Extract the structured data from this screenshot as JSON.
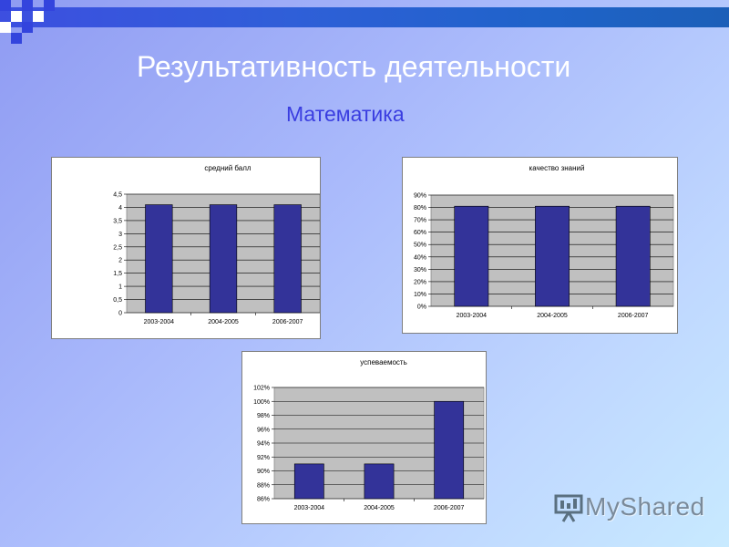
{
  "slide": {
    "title": "Результативность деятельности",
    "subtitle": "Математика"
  },
  "watermark": {
    "text": "MyShared",
    "icon": "presentation-screen-icon"
  },
  "colors": {
    "bar": "#333399",
    "plot_bg": "#c0c0c0",
    "title": "#ffffff",
    "subtitle": "#3a3de0"
  },
  "chart_data": [
    {
      "type": "bar",
      "title": "средний балл",
      "categories": [
        "2003-2004",
        "2004-2005",
        "2006-2007"
      ],
      "values": [
        4.1,
        4.1,
        4.1
      ],
      "ylim": [
        0,
        4.5
      ],
      "yticks": [
        "0",
        "0,5",
        "1",
        "1,5",
        "2",
        "2,5",
        "3",
        "3,5",
        "4",
        "4,5"
      ],
      "grid": true,
      "legend": "none",
      "xlabel": "",
      "ylabel": ""
    },
    {
      "type": "bar",
      "title": "качество знаний",
      "categories": [
        "2003-2004",
        "2004-2005",
        "2006-2007"
      ],
      "values": [
        81,
        81,
        81
      ],
      "ylim": [
        0,
        90
      ],
      "yticks": [
        "0%",
        "10%",
        "20%",
        "30%",
        "40%",
        "50%",
        "60%",
        "70%",
        "80%",
        "90%"
      ],
      "grid": true,
      "legend": "none",
      "xlabel": "",
      "ylabel": ""
    },
    {
      "type": "bar",
      "title": "успеваемость",
      "categories": [
        "2003-2004",
        "2004-2005",
        "2006-2007"
      ],
      "values": [
        91,
        91,
        100
      ],
      "ylim": [
        86,
        102
      ],
      "yticks": [
        "86%",
        "88%",
        "90%",
        "92%",
        "94%",
        "96%",
        "98%",
        "100%",
        "102%"
      ],
      "grid": true,
      "legend": "none",
      "xlabel": "",
      "ylabel": ""
    }
  ]
}
